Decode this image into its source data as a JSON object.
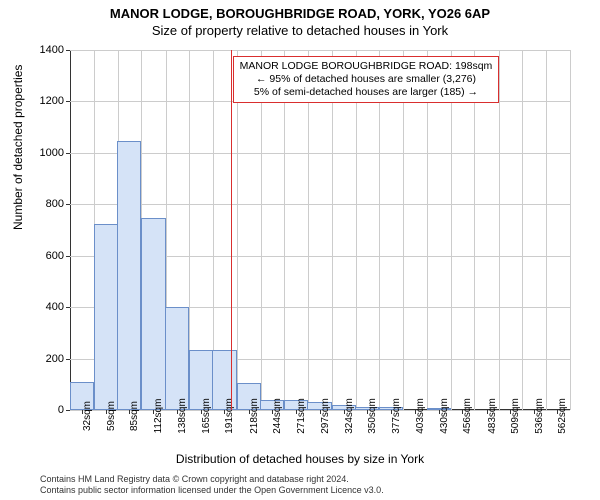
{
  "title_line1": "MANOR LODGE, BOROUGHBRIDGE ROAD, YORK, YO26 6AP",
  "title_line2": "Size of property relative to detached houses in York",
  "y_axis_title": "Number of detached properties",
  "x_axis_title": "Distribution of detached houses by size in York",
  "chart": {
    "type": "histogram",
    "background_color": "#ffffff",
    "grid_color": "#cccccc",
    "bar_fill": "#d5e3f7",
    "bar_border": "#6b8fc9",
    "ref_line_color": "#d92e2e",
    "ylim": [
      0,
      1400
    ],
    "ytick_step": 200,
    "y_ticks": [
      0,
      200,
      400,
      600,
      800,
      1000,
      1200,
      1400
    ],
    "x_categories": [
      "32sqm",
      "59sqm",
      "85sqm",
      "112sqm",
      "138sqm",
      "165sqm",
      "191sqm",
      "218sqm",
      "244sqm",
      "271sqm",
      "297sqm",
      "324sqm",
      "350sqm",
      "377sqm",
      "403sqm",
      "430sqm",
      "456sqm",
      "483sqm",
      "509sqm",
      "536sqm",
      "562sqm"
    ],
    "x_numeric_centers": [
      32,
      59,
      85,
      112,
      138,
      165,
      191,
      218,
      244,
      271,
      297,
      324,
      350,
      377,
      403,
      430,
      456,
      483,
      509,
      536,
      562
    ],
    "bar_values": [
      110,
      722,
      1045,
      745,
      400,
      235,
      232,
      105,
      40,
      40,
      30,
      20,
      10,
      10,
      0,
      5,
      0,
      0,
      0,
      0,
      0
    ],
    "reference_value_sqm": 198,
    "xlim": [
      19,
      576
    ]
  },
  "annotation": {
    "line1": "MANOR LODGE BOROUGHBRIDGE ROAD: 198sqm",
    "line2": "← 95% of detached houses are smaller (3,276)",
    "line3": "5% of semi-detached houses are larger (185) →",
    "border_color": "#d92e2e",
    "fontsize": 10.5
  },
  "footer_line1": "Contains HM Land Registry data © Crown copyright and database right 2024.",
  "footer_line2": "Contains public sector information licensed under the Open Government Licence v3.0."
}
